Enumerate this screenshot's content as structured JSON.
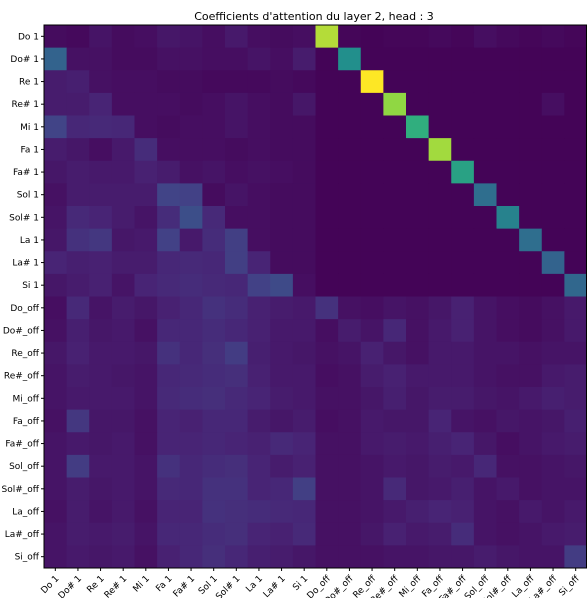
{
  "chart_data": {
    "type": "heatmap",
    "title": "Coefficients d'attention du layer 2, head : 3",
    "xlabel": "",
    "ylabel": "",
    "grid": false,
    "legend": "none",
    "colormap": "viridis",
    "value_range": [
      0,
      1
    ],
    "labels": [
      "Do 1",
      "Do# 1",
      "Re 1",
      "Re# 1",
      "Mi 1",
      "Fa 1",
      "Fa# 1",
      "Sol 1",
      "Sol# 1",
      "La 1",
      "La# 1",
      "Si 1",
      "Do_off",
      "Do#_off",
      "Re_off",
      "Re#_off",
      "Mi_off",
      "Fa_off",
      "Fa#_off",
      "Sol_off",
      "Sol#_off",
      "La_off",
      "La#_off",
      "Si_off"
    ],
    "matrix": [
      [
        0.04,
        0.03,
        0.07,
        0.04,
        0.05,
        0.08,
        0.07,
        0.05,
        0.09,
        0.05,
        0.04,
        0.05,
        0.92,
        0.02,
        0.01,
        0.02,
        0.02,
        0.03,
        0.02,
        0.05,
        0.03,
        0.02,
        0.03,
        0.02
      ],
      [
        0.4,
        0.06,
        0.06,
        0.04,
        0.04,
        0.06,
        0.06,
        0.05,
        0.05,
        0.07,
        0.05,
        0.1,
        0.01,
        0.62,
        0.01,
        0.01,
        0.01,
        0.01,
        0.01,
        0.01,
        0.01,
        0.01,
        0.01,
        0.01
      ],
      [
        0.1,
        0.11,
        0.06,
        0.05,
        0.05,
        0.04,
        0.04,
        0.03,
        0.03,
        0.03,
        0.04,
        0.03,
        0.01,
        0.01,
        1.0,
        0.01,
        0.01,
        0.01,
        0.01,
        0.01,
        0.01,
        0.01,
        0.01,
        0.01
      ],
      [
        0.1,
        0.1,
        0.13,
        0.05,
        0.05,
        0.05,
        0.04,
        0.05,
        0.07,
        0.05,
        0.04,
        0.08,
        0.01,
        0.01,
        0.01,
        0.88,
        0.01,
        0.01,
        0.01,
        0.01,
        0.01,
        0.01,
        0.05,
        0.01
      ],
      [
        0.25,
        0.14,
        0.15,
        0.14,
        0.05,
        0.04,
        0.05,
        0.05,
        0.07,
        0.05,
        0.04,
        0.04,
        0.01,
        0.01,
        0.01,
        0.01,
        0.72,
        0.01,
        0.01,
        0.01,
        0.01,
        0.01,
        0.01,
        0.01
      ],
      [
        0.1,
        0.08,
        0.05,
        0.09,
        0.16,
        0.05,
        0.05,
        0.05,
        0.04,
        0.05,
        0.04,
        0.04,
        0.01,
        0.01,
        0.01,
        0.01,
        0.01,
        0.9,
        0.01,
        0.01,
        0.01,
        0.01,
        0.01,
        0.01
      ],
      [
        0.08,
        0.1,
        0.09,
        0.09,
        0.12,
        0.1,
        0.06,
        0.07,
        0.05,
        0.06,
        0.05,
        0.04,
        0.01,
        0.01,
        0.01,
        0.01,
        0.01,
        0.01,
        0.68,
        0.01,
        0.01,
        0.01,
        0.01,
        0.01
      ],
      [
        0.06,
        0.1,
        0.1,
        0.1,
        0.1,
        0.25,
        0.24,
        0.04,
        0.07,
        0.05,
        0.04,
        0.04,
        0.01,
        0.01,
        0.01,
        0.01,
        0.01,
        0.01,
        0.01,
        0.45,
        0.01,
        0.01,
        0.01,
        0.01
      ],
      [
        0.07,
        0.15,
        0.13,
        0.1,
        0.07,
        0.16,
        0.3,
        0.15,
        0.05,
        0.05,
        0.04,
        0.04,
        0.01,
        0.01,
        0.01,
        0.01,
        0.01,
        0.01,
        0.01,
        0.01,
        0.55,
        0.01,
        0.01,
        0.01
      ],
      [
        0.08,
        0.18,
        0.2,
        0.08,
        0.09,
        0.24,
        0.09,
        0.16,
        0.23,
        0.05,
        0.04,
        0.04,
        0.01,
        0.01,
        0.01,
        0.01,
        0.01,
        0.01,
        0.01,
        0.01,
        0.01,
        0.45,
        0.01,
        0.01
      ],
      [
        0.13,
        0.11,
        0.12,
        0.1,
        0.1,
        0.14,
        0.15,
        0.14,
        0.23,
        0.13,
        0.04,
        0.04,
        0.01,
        0.01,
        0.01,
        0.01,
        0.01,
        0.01,
        0.01,
        0.01,
        0.01,
        0.01,
        0.4,
        0.01
      ],
      [
        0.08,
        0.1,
        0.12,
        0.07,
        0.13,
        0.15,
        0.16,
        0.15,
        0.14,
        0.24,
        0.28,
        0.05,
        0.01,
        0.01,
        0.01,
        0.01,
        0.01,
        0.01,
        0.01,
        0.01,
        0.01,
        0.01,
        0.01,
        0.42
      ],
      [
        0.05,
        0.15,
        0.07,
        0.1,
        0.08,
        0.12,
        0.14,
        0.18,
        0.16,
        0.12,
        0.1,
        0.09,
        0.18,
        0.06,
        0.05,
        0.07,
        0.06,
        0.08,
        0.12,
        0.07,
        0.05,
        0.04,
        0.06,
        0.09
      ],
      [
        0.06,
        0.11,
        0.08,
        0.09,
        0.06,
        0.14,
        0.14,
        0.16,
        0.14,
        0.12,
        0.09,
        0.09,
        0.05,
        0.1,
        0.07,
        0.14,
        0.06,
        0.09,
        0.12,
        0.07,
        0.05,
        0.04,
        0.06,
        0.09
      ],
      [
        0.08,
        0.12,
        0.09,
        0.09,
        0.08,
        0.18,
        0.14,
        0.17,
        0.22,
        0.11,
        0.09,
        0.08,
        0.06,
        0.07,
        0.12,
        0.08,
        0.06,
        0.09,
        0.09,
        0.07,
        0.07,
        0.06,
        0.07,
        0.07
      ],
      [
        0.07,
        0.1,
        0.09,
        0.08,
        0.07,
        0.14,
        0.15,
        0.16,
        0.17,
        0.12,
        0.09,
        0.09,
        0.05,
        0.06,
        0.1,
        0.12,
        0.09,
        0.09,
        0.09,
        0.07,
        0.06,
        0.06,
        0.09,
        0.1
      ],
      [
        0.07,
        0.09,
        0.09,
        0.09,
        0.07,
        0.15,
        0.16,
        0.17,
        0.15,
        0.13,
        0.1,
        0.09,
        0.06,
        0.06,
        0.08,
        0.11,
        0.08,
        0.1,
        0.1,
        0.08,
        0.07,
        0.09,
        0.11,
        0.1
      ],
      [
        0.06,
        0.2,
        0.08,
        0.08,
        0.06,
        0.13,
        0.12,
        0.14,
        0.14,
        0.1,
        0.08,
        0.1,
        0.05,
        0.06,
        0.09,
        0.08,
        0.08,
        0.13,
        0.07,
        0.06,
        0.08,
        0.07,
        0.08,
        0.11
      ],
      [
        0.07,
        0.09,
        0.08,
        0.09,
        0.06,
        0.13,
        0.13,
        0.14,
        0.13,
        0.12,
        0.15,
        0.13,
        0.06,
        0.06,
        0.09,
        0.1,
        0.09,
        0.11,
        0.13,
        0.08,
        0.05,
        0.07,
        0.09,
        0.1
      ],
      [
        0.07,
        0.22,
        0.09,
        0.09,
        0.07,
        0.18,
        0.14,
        0.16,
        0.17,
        0.13,
        0.1,
        0.12,
        0.06,
        0.06,
        0.07,
        0.09,
        0.08,
        0.1,
        0.09,
        0.14,
        0.06,
        0.06,
        0.07,
        0.08
      ],
      [
        0.07,
        0.1,
        0.08,
        0.09,
        0.07,
        0.15,
        0.14,
        0.18,
        0.18,
        0.13,
        0.14,
        0.23,
        0.06,
        0.06,
        0.07,
        0.15,
        0.08,
        0.09,
        0.11,
        0.07,
        0.09,
        0.06,
        0.07,
        0.07
      ],
      [
        0.06,
        0.1,
        0.07,
        0.09,
        0.06,
        0.13,
        0.13,
        0.18,
        0.17,
        0.16,
        0.15,
        0.14,
        0.06,
        0.06,
        0.07,
        0.09,
        0.11,
        0.13,
        0.12,
        0.07,
        0.06,
        0.09,
        0.07,
        0.09
      ],
      [
        0.07,
        0.1,
        0.09,
        0.1,
        0.07,
        0.14,
        0.14,
        0.16,
        0.17,
        0.13,
        0.12,
        0.15,
        0.06,
        0.06,
        0.08,
        0.12,
        0.09,
        0.1,
        0.16,
        0.07,
        0.06,
        0.07,
        0.09,
        0.1
      ],
      [
        0.07,
        0.09,
        0.08,
        0.09,
        0.06,
        0.12,
        0.14,
        0.17,
        0.14,
        0.11,
        0.1,
        0.08,
        0.06,
        0.06,
        0.06,
        0.07,
        0.07,
        0.08,
        0.08,
        0.1,
        0.08,
        0.07,
        0.07,
        0.22
      ]
    ]
  }
}
